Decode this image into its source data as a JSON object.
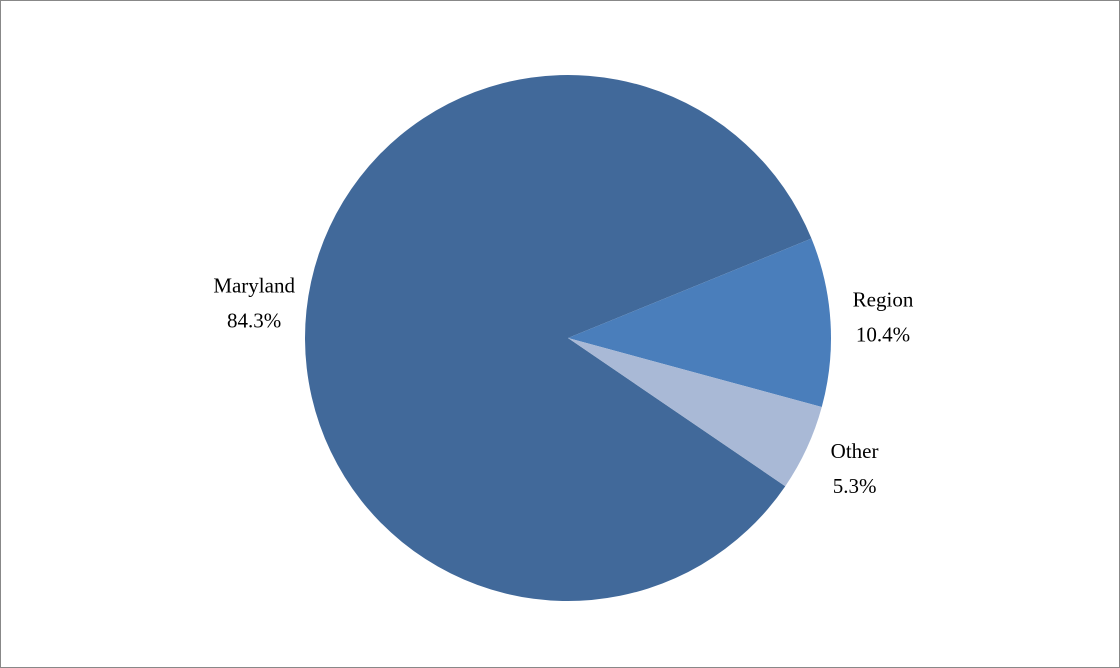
{
  "chart_data": {
    "type": "pie",
    "categories": [
      "Maryland",
      "Region",
      "Other"
    ],
    "values": [
      84.3,
      10.4,
      5.3
    ],
    "value_labels": [
      "84.3%",
      "10.4%",
      "5.3%"
    ],
    "colors": [
      "#41699a",
      "#4a7ebb",
      "#a9b9d6"
    ]
  }
}
